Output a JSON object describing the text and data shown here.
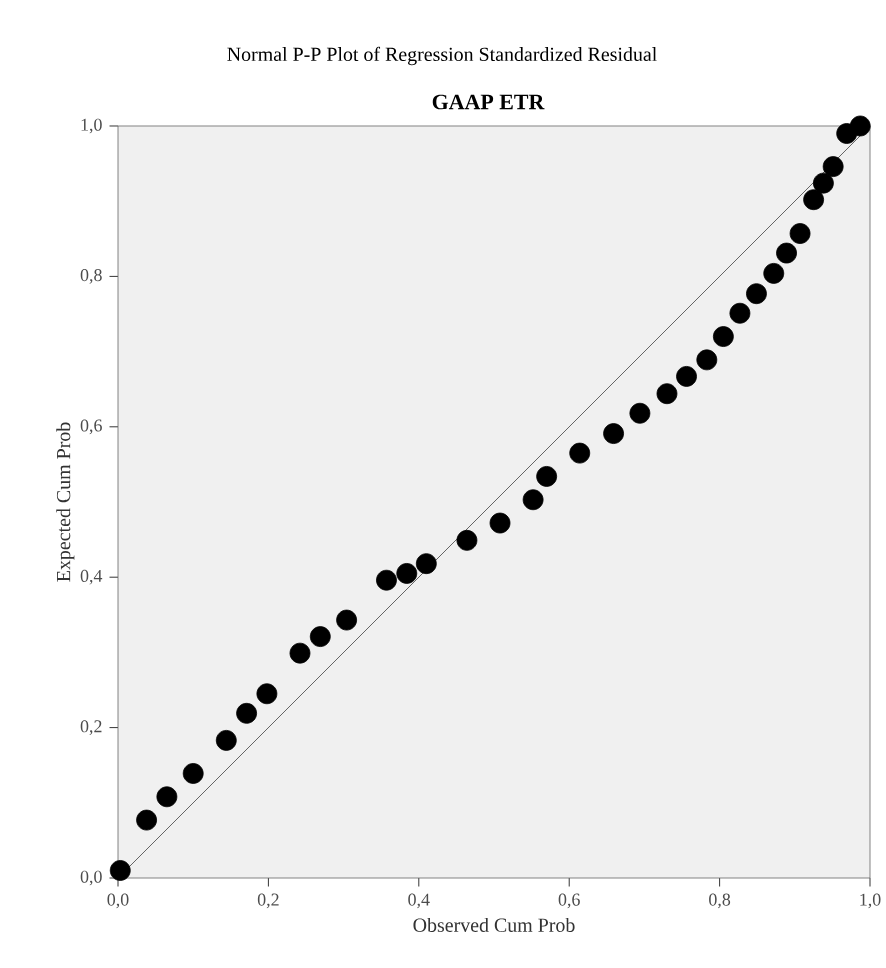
{
  "chart_data": {
    "type": "scatter",
    "title": "Normal P-P Plot of Regression Standardized Residual",
    "subtitle": "GAAP ETR",
    "xlabel": "Observed Cum Prob",
    "ylabel": "Expected Cum Prob",
    "xlim": [
      0,
      1
    ],
    "ylim": [
      0,
      1
    ],
    "xticks": [
      {
        "value": 0,
        "label": "0,0"
      },
      {
        "value": 0.2,
        "label": "0,2"
      },
      {
        "value": 0.4,
        "label": "0,4"
      },
      {
        "value": 0.6,
        "label": "0,6"
      },
      {
        "value": 0.8,
        "label": "0,8"
      },
      {
        "value": 1,
        "label": "1,0"
      }
    ],
    "yticks": [
      {
        "value": 0,
        "label": "0,0"
      },
      {
        "value": 0.2,
        "label": "0,2"
      },
      {
        "value": 0.4,
        "label": "0,4"
      },
      {
        "value": 0.6,
        "label": "0,6"
      },
      {
        "value": 0.8,
        "label": "0,8"
      },
      {
        "value": 1,
        "label": "1,0"
      }
    ],
    "grid": false,
    "series": [
      {
        "color": "#000000",
        "marker": "circle",
        "x": [
          0.003,
          0.038,
          0.065,
          0.1,
          0.144,
          0.171,
          0.198,
          0.242,
          0.269,
          0.304,
          0.357,
          0.384,
          0.41,
          0.464,
          0.508,
          0.552,
          0.57,
          0.614,
          0.659,
          0.694,
          0.73,
          0.756,
          0.783,
          0.805,
          0.827,
          0.849,
          0.872,
          0.889,
          0.907,
          0.925,
          0.938,
          0.951,
          0.969,
          0.987
        ],
        "values": [
          0.01,
          0.077,
          0.108,
          0.139,
          0.183,
          0.219,
          0.245,
          0.299,
          0.321,
          0.343,
          0.396,
          0.405,
          0.418,
          0.449,
          0.472,
          0.503,
          0.534,
          0.565,
          0.591,
          0.618,
          0.644,
          0.667,
          0.689,
          0.72,
          0.751,
          0.777,
          0.804,
          0.831,
          0.857,
          0.902,
          0.924,
          0.946,
          0.99,
          1.0
        ]
      },
      {
        "type": "line",
        "marker": "none",
        "color": "#404040",
        "x": [
          0,
          1
        ],
        "values": [
          0,
          1
        ]
      }
    ]
  }
}
